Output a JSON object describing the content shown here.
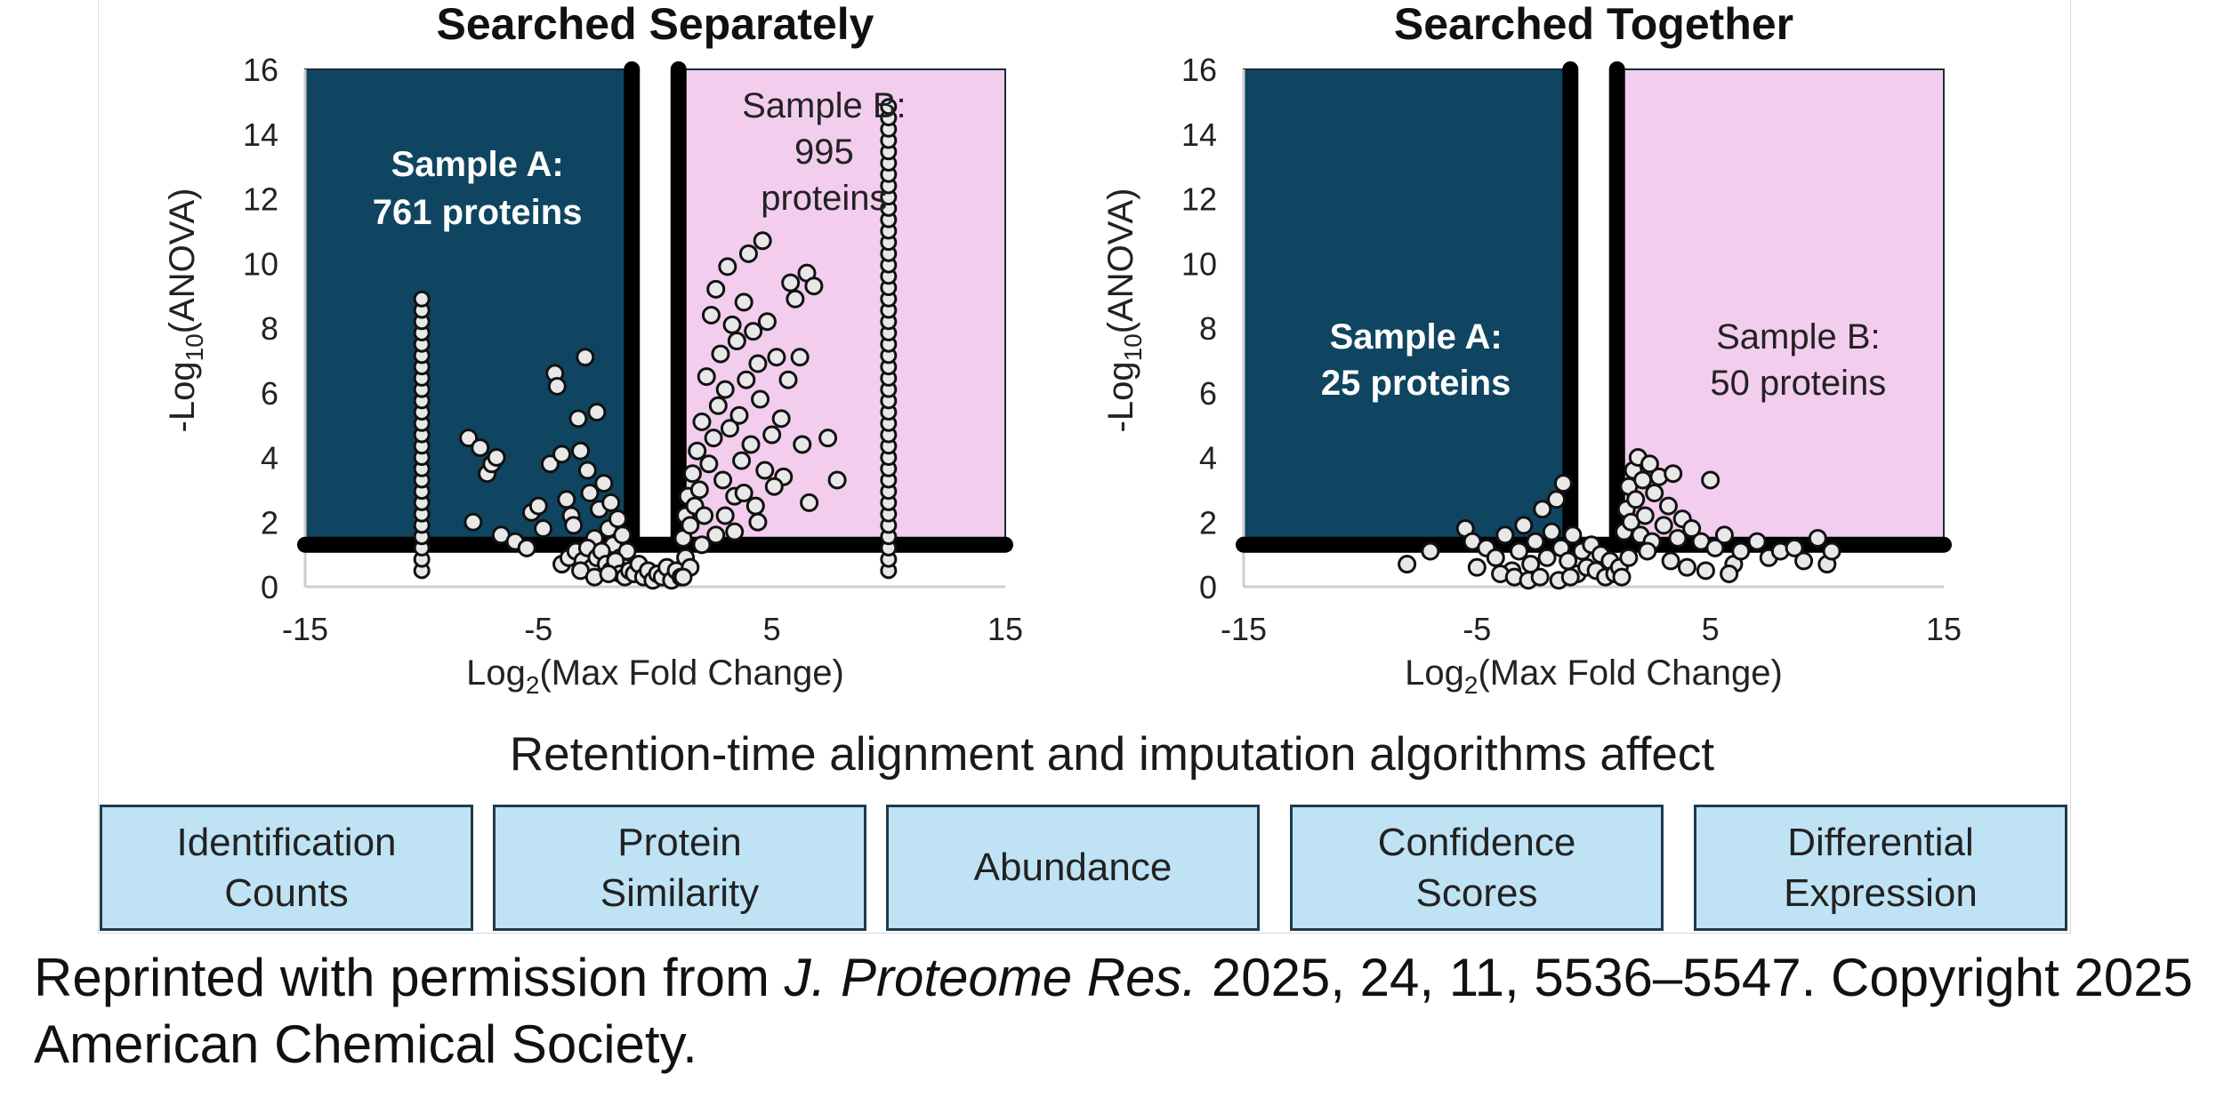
{
  "chart_data": [
    {
      "type": "scatter",
      "title": "Searched Separately",
      "xlabel_main": "Log",
      "xlabel_sub": "2",
      "xlabel_rest": "(Max Fold Change)",
      "ylabel_main": "-Log",
      "ylabel_sub": "10",
      "ylabel_rest": "(ANOVA)",
      "xlim": [
        -15,
        15
      ],
      "ylim": [
        0,
        16
      ],
      "xticks": [
        "-15",
        "-5",
        "5",
        "15"
      ],
      "yticks": [
        "0",
        "2",
        "4",
        "6",
        "8",
        "10",
        "12",
        "14",
        "16"
      ],
      "region_a": {
        "label_line1": "Sample A:",
        "label_line2": "761 proteins",
        "color": "#0f4560"
      },
      "region_b": {
        "label_line1": "Sample B:",
        "label_line2": "995",
        "label_line3": "proteins",
        "color": "#f2cdee"
      },
      "fold_cut": 1,
      "sig_cut": 1.3,
      "columns": [
        {
          "x": -10,
          "ymin": 0.5,
          "ymax": 9
        },
        {
          "x": 10,
          "ymin": 0.5,
          "ymax": 15
        }
      ],
      "points": [
        [
          -8,
          4.6
        ],
        [
          -7.5,
          4.3
        ],
        [
          -7.2,
          3.5
        ],
        [
          -7,
          3.8
        ],
        [
          -6.8,
          4
        ],
        [
          -7.8,
          2
        ],
        [
          -6.6,
          1.6
        ],
        [
          -6,
          1.4
        ],
        [
          -5.5,
          1.2
        ],
        [
          -5.3,
          2.3
        ],
        [
          -5,
          2.5
        ],
        [
          -4.8,
          1.8
        ],
        [
          -4.5,
          3.8
        ],
        [
          -4.3,
          6.6
        ],
        [
          -4.2,
          6.2
        ],
        [
          -4,
          4.1
        ],
        [
          -3.8,
          2.7
        ],
        [
          -3.6,
          2.2
        ],
        [
          -3.5,
          1.9
        ],
        [
          -3.3,
          5.2
        ],
        [
          -3.2,
          4.2
        ],
        [
          -3,
          7.1
        ],
        [
          -2.9,
          3.6
        ],
        [
          -2.8,
          2.9
        ],
        [
          -2.6,
          1.5
        ],
        [
          -2.5,
          5.4
        ],
        [
          -2.4,
          2.4
        ],
        [
          -2.2,
          3.2
        ],
        [
          -2,
          1.8
        ],
        [
          -1.9,
          2.6
        ],
        [
          -1.8,
          1.3
        ],
        [
          -1.6,
          2.1
        ],
        [
          -1.5,
          0.9
        ],
        [
          -1.4,
          1.6
        ],
        [
          -1.3,
          0.6
        ],
        [
          -1.2,
          1.1
        ],
        [
          -4,
          0.7
        ],
        [
          -3.7,
          0.9
        ],
        [
          -3.4,
          1.1
        ],
        [
          -3.1,
          0.8
        ],
        [
          -2.9,
          1.2
        ],
        [
          -2.7,
          0.6
        ],
        [
          -2.5,
          0.9
        ],
        [
          -2.3,
          1.1
        ],
        [
          -2.1,
          0.7
        ],
        [
          -1.9,
          0.5
        ],
        [
          -1.7,
          0.8
        ],
        [
          -1.5,
          0.4
        ],
        [
          -1.3,
          0.3
        ],
        [
          -1.1,
          0.5
        ],
        [
          -0.9,
          0.4
        ],
        [
          -0.7,
          0.7
        ],
        [
          -0.5,
          0.3
        ],
        [
          -0.3,
          0.5
        ],
        [
          -0.1,
          0.2
        ],
        [
          0.1,
          0.4
        ],
        [
          0.3,
          0.3
        ],
        [
          0.5,
          0.6
        ],
        [
          0.7,
          0.2
        ],
        [
          0.9,
          0.5
        ],
        [
          1.1,
          0.3
        ],
        [
          -3.2,
          0.5
        ],
        [
          -2.6,
          0.3
        ],
        [
          -2,
          0.4
        ],
        [
          1.2,
          1.5
        ],
        [
          1.3,
          2.2
        ],
        [
          1.4,
          2.8
        ],
        [
          1.5,
          1.9
        ],
        [
          1.6,
          3.5
        ],
        [
          1.7,
          2.5
        ],
        [
          1.8,
          4.2
        ],
        [
          1.9,
          3
        ],
        [
          2,
          5.1
        ],
        [
          2.1,
          2.2
        ],
        [
          2.2,
          6.5
        ],
        [
          2.3,
          3.8
        ],
        [
          2.4,
          8.4
        ],
        [
          2.5,
          4.6
        ],
        [
          2.6,
          9.2
        ],
        [
          2.7,
          5.6
        ],
        [
          2.8,
          7.2
        ],
        [
          2.9,
          3.3
        ],
        [
          3,
          6.1
        ],
        [
          3.1,
          9.9
        ],
        [
          3.2,
          4.9
        ],
        [
          3.3,
          8.1
        ],
        [
          3.4,
          2.8
        ],
        [
          3.5,
          7.6
        ],
        [
          3.6,
          5.3
        ],
        [
          3.7,
          3.9
        ],
        [
          3.8,
          8.8
        ],
        [
          3.9,
          6.4
        ],
        [
          4,
          10.3
        ],
        [
          4.1,
          4.4
        ],
        [
          4.2,
          7.9
        ],
        [
          4.3,
          2.5
        ],
        [
          4.4,
          6.9
        ],
        [
          4.5,
          5.8
        ],
        [
          4.6,
          10.7
        ],
        [
          4.7,
          3.6
        ],
        [
          4.8,
          8.2
        ],
        [
          5,
          4.7
        ],
        [
          5.2,
          7.1
        ],
        [
          5.4,
          5.2
        ],
        [
          5.5,
          3.4
        ],
        [
          5.7,
          6.4
        ],
        [
          5.8,
          9.4
        ],
        [
          6,
          8.9
        ],
        [
          6.2,
          7.1
        ],
        [
          6.3,
          4.4
        ],
        [
          6.5,
          9.7
        ],
        [
          6.6,
          2.6
        ],
        [
          6.8,
          9.3
        ],
        [
          7.4,
          4.6
        ],
        [
          7.8,
          3.3
        ],
        [
          3,
          2.2
        ],
        [
          2.6,
          1.6
        ],
        [
          3.8,
          2.9
        ],
        [
          4.4,
          2
        ],
        [
          5.1,
          3.1
        ],
        [
          2,
          1.3
        ],
        [
          3.4,
          1.7
        ],
        [
          1.3,
          0.9
        ],
        [
          1.5,
          0.6
        ],
        [
          1.2,
          0.3
        ]
      ]
    },
    {
      "type": "scatter",
      "title": "Searched Together",
      "xlabel_main": "Log",
      "xlabel_sub": "2",
      "xlabel_rest": "(Max Fold Change)",
      "ylabel_main": "-Log",
      "ylabel_sub": "10",
      "ylabel_rest": "(ANOVA)",
      "xlim": [
        -15,
        15
      ],
      "ylim": [
        0,
        16
      ],
      "xticks": [
        "-15",
        "-5",
        "5",
        "15"
      ],
      "yticks": [
        "0",
        "2",
        "4",
        "6",
        "8",
        "10",
        "12",
        "14",
        "16"
      ],
      "region_a": {
        "label_line1": "Sample A:",
        "label_line2": "25 proteins",
        "color": "#0f4560"
      },
      "region_b": {
        "label_line1": "Sample B:",
        "label_line2": "50 proteins",
        "color": "#f2cdee"
      },
      "fold_cut": 1,
      "sig_cut": 1.3,
      "columns": [],
      "points": [
        [
          -8,
          0.7
        ],
        [
          -7,
          1.1
        ],
        [
          -5.5,
          1.8
        ],
        [
          -5.2,
          1.4
        ],
        [
          -5,
          0.6
        ],
        [
          -4.6,
          1.2
        ],
        [
          -4.2,
          0.9
        ],
        [
          -3.8,
          1.6
        ],
        [
          -3.5,
          0.5
        ],
        [
          -3.2,
          1.1
        ],
        [
          -3,
          1.9
        ],
        [
          -2.7,
          0.7
        ],
        [
          -2.5,
          1.4
        ],
        [
          -2.2,
          2.4
        ],
        [
          -2,
          0.9
        ],
        [
          -1.8,
          1.7
        ],
        [
          -1.6,
          2.7
        ],
        [
          -1.4,
          1.2
        ],
        [
          -1.3,
          3.2
        ],
        [
          -1.1,
          0.8
        ],
        [
          -0.9,
          1.6
        ],
        [
          -0.7,
          0.4
        ],
        [
          -0.5,
          1.1
        ],
        [
          -0.3,
          0.6
        ],
        [
          -0.1,
          1.3
        ],
        [
          0.1,
          0.5
        ],
        [
          0.3,
          1
        ],
        [
          0.5,
          0.3
        ],
        [
          0.7,
          0.8
        ],
        [
          0.9,
          0.4
        ],
        [
          1.1,
          0.6
        ],
        [
          -4,
          0.4
        ],
        [
          -3.4,
          0.3
        ],
        [
          -2.8,
          0.2
        ],
        [
          -2.3,
          0.3
        ],
        [
          -1.5,
          0.2
        ],
        [
          -1,
          0.3
        ],
        [
          1.3,
          1.7
        ],
        [
          1.4,
          2.4
        ],
        [
          1.5,
          3.1
        ],
        [
          1.6,
          2
        ],
        [
          1.7,
          3.6
        ],
        [
          1.8,
          2.7
        ],
        [
          1.9,
          4
        ],
        [
          2,
          1.6
        ],
        [
          2.1,
          3.3
        ],
        [
          2.2,
          2.2
        ],
        [
          2.4,
          3.8
        ],
        [
          2.5,
          1.4
        ],
        [
          2.6,
          2.9
        ],
        [
          2.8,
          3.4
        ],
        [
          3,
          1.9
        ],
        [
          3.2,
          2.5
        ],
        [
          3.4,
          3.5
        ],
        [
          3.6,
          1.5
        ],
        [
          3.8,
          2.1
        ],
        [
          4.2,
          1.8
        ],
        [
          4.6,
          1.4
        ],
        [
          5,
          3.3
        ],
        [
          5.2,
          1.2
        ],
        [
          5.6,
          1.6
        ],
        [
          6,
          0.7
        ],
        [
          6.3,
          1.1
        ],
        [
          7,
          1.4
        ],
        [
          7.5,
          0.9
        ],
        [
          8,
          1.1
        ],
        [
          8.6,
          1.2
        ],
        [
          9,
          0.8
        ],
        [
          9.6,
          1.5
        ],
        [
          10,
          0.7
        ],
        [
          10.2,
          1.1
        ],
        [
          1.5,
          0.9
        ],
        [
          2.3,
          1.1
        ],
        [
          3.3,
          0.8
        ],
        [
          4,
          0.6
        ],
        [
          4.8,
          0.5
        ],
        [
          5.8,
          0.4
        ],
        [
          1.2,
          0.3
        ]
      ]
    }
  ],
  "summary": {
    "title": "Retention-time alignment and imputation algorithms affect",
    "boxes": [
      "Identification\nCounts",
      "Protein\nSimilarity",
      "Abundance",
      "Confidence\nScores",
      "Differential\nExpression"
    ]
  },
  "credit": {
    "prefix": "Reprinted with permission from ",
    "journal": "J. Proteome Res.",
    "suffix": " 2025, 24, 11, 5536–5547. Copyright 2025 American Chemical Society."
  }
}
